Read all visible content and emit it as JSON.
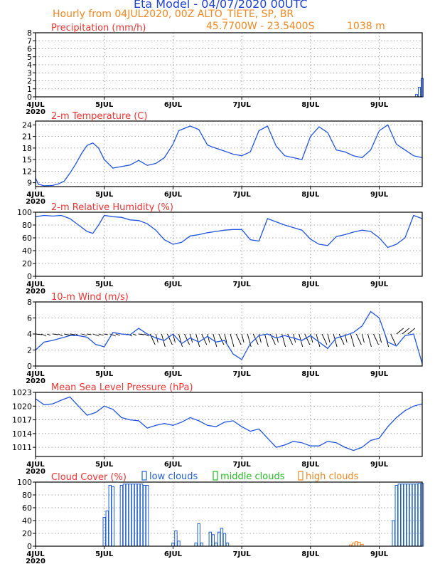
{
  "header": {
    "title": "Eta Model - 04/07/2020 00UTC",
    "subtitle": "Hourly from 04JUL2020, 00Z  ALTO_TIETE, SP, BR",
    "coords": "45.7700W - 23.5400S",
    "elevation": "1038  m"
  },
  "colors": {
    "line": "#2255dd",
    "title": "#ee3333",
    "header_blue": "#2244cc",
    "header_orange": "#ee8822",
    "low": "#1f5fd0",
    "middle": "#22bb22",
    "high": "#ee8822"
  },
  "chart_data": [
    {
      "id": "precip",
      "type": "bar",
      "title": "Precipitation (mm/h)",
      "ylim": [
        0,
        8
      ],
      "yticks": [
        0,
        1,
        2,
        3,
        4,
        5,
        6,
        7,
        8
      ],
      "x_labels": [
        "4JUL",
        "5JUL",
        "6JUL",
        "7JUL",
        "8JUL",
        "9JUL"
      ],
      "x_year": "2020",
      "series": [
        {
          "name": "precipitation",
          "x": [
            133,
            134,
            135
          ],
          "values": [
            0.3,
            1.2,
            2.3
          ]
        }
      ]
    },
    {
      "id": "temp",
      "type": "line",
      "title": "2-m Temperature (C)",
      "ylim": [
        8,
        25
      ],
      "yticks": [
        9,
        12,
        15,
        18,
        21,
        24
      ],
      "x_labels": [
        "4JUL",
        "5JUL",
        "6JUL",
        "7JUL",
        "8JUL",
        "9JUL"
      ],
      "x_year": "2020",
      "series": [
        {
          "name": "temperature",
          "x": [
            0,
            1,
            3,
            6,
            8,
            10,
            12,
            14,
            16,
            18,
            20,
            22,
            24,
            27,
            30,
            33,
            36,
            39,
            42,
            45,
            48,
            50,
            54,
            57,
            60,
            62,
            66,
            69,
            72,
            75,
            78,
            81,
            84,
            87,
            90,
            93,
            96,
            99,
            102,
            105,
            108,
            111,
            114,
            117,
            120,
            123,
            126,
            129,
            132,
            135
          ],
          "values": [
            10.2,
            8.6,
            8.2,
            8.3,
            8.7,
            9.4,
            11.5,
            13.8,
            16.5,
            18.7,
            19.3,
            18.0,
            15.0,
            12.8,
            13.2,
            13.6,
            14.8,
            13.5,
            14.0,
            15.5,
            19.0,
            22.5,
            23.7,
            22.8,
            18.8,
            18.2,
            17.2,
            16.4,
            16.0,
            17.0,
            22.5,
            23.7,
            18.5,
            16.0,
            15.5,
            15.0,
            21.0,
            23.5,
            22.0,
            17.5,
            17.0,
            16.0,
            15.5,
            17.5,
            22.5,
            24.0,
            19.0,
            17.5,
            16.0,
            15.5
          ]
        }
      ]
    },
    {
      "id": "rh",
      "type": "line",
      "title": "2-m Relative Humidity (%)",
      "ylim": [
        0,
        100
      ],
      "yticks": [
        0,
        20,
        40,
        60,
        80,
        100
      ],
      "x_labels": [
        "4JUL",
        "5JUL",
        "6JUL",
        "7JUL",
        "8JUL",
        "9JUL"
      ],
      "x_year": "2020",
      "series": [
        {
          "name": "relative humidity",
          "x": [
            0,
            3,
            6,
            9,
            12,
            15,
            18,
            20,
            22,
            24,
            27,
            30,
            33,
            36,
            39,
            42,
            45,
            48,
            51,
            54,
            57,
            60,
            63,
            66,
            69,
            72,
            75,
            78,
            81,
            84,
            87,
            90,
            93,
            96,
            99,
            102,
            105,
            108,
            111,
            114,
            117,
            120,
            123,
            126,
            129,
            132,
            135
          ],
          "values": [
            93,
            95,
            94,
            95,
            90,
            80,
            70,
            67,
            80,
            95,
            93,
            92,
            88,
            87,
            82,
            72,
            57,
            50,
            53,
            63,
            65,
            68,
            70,
            72,
            73,
            73,
            57,
            55,
            90,
            85,
            80,
            76,
            72,
            58,
            50,
            48,
            62,
            65,
            69,
            72,
            70,
            60,
            45,
            50,
            60,
            95,
            90
          ]
        }
      ]
    },
    {
      "id": "wind",
      "type": "line",
      "title": "10-m Wind (m/s)",
      "ylim": [
        0,
        8
      ],
      "yticks": [
        0,
        2,
        4,
        6,
        8
      ],
      "x_labels": [
        "4JUL",
        "5JUL",
        "6JUL",
        "7JUL",
        "8JUL",
        "9JUL"
      ],
      "x_year": "2020",
      "series": [
        {
          "name": "wind speed",
          "x": [
            0,
            3,
            6,
            9,
            12,
            15,
            18,
            21,
            24,
            27,
            30,
            33,
            36,
            39,
            42,
            45,
            48,
            51,
            54,
            57,
            60,
            63,
            66,
            69,
            72,
            75,
            78,
            81,
            84,
            87,
            90,
            93,
            96,
            99,
            102,
            105,
            108,
            111,
            114,
            117,
            120,
            123,
            126,
            129,
            132,
            135
          ],
          "values": [
            2.0,
            3.0,
            3.2,
            3.5,
            3.8,
            3.8,
            3.6,
            2.7,
            2.4,
            4.2,
            4.0,
            3.9,
            4.7,
            4.0,
            3.5,
            3.2,
            4.0,
            2.8,
            3.5,
            3.0,
            3.7,
            3.0,
            3.2,
            1.5,
            0.8,
            2.8,
            3.8,
            4.0,
            3.5,
            3.8,
            3.5,
            3.2,
            3.8,
            3.0,
            2.2,
            3.5,
            3.8,
            4.2,
            5.0,
            6.8,
            6.0,
            3.0,
            2.5,
            3.8,
            4.0,
            0.3
          ]
        }
      ]
    },
    {
      "id": "mslp",
      "type": "line",
      "title": "Mean Sea Level Pressure (hPa)",
      "ylim": [
        1009,
        1023
      ],
      "yticks": [
        1011,
        1014,
        1017,
        1020,
        1023
      ],
      "x_labels": [
        "4JUL",
        "5JUL",
        "6JUL",
        "7JUL",
        "8JUL",
        "9JUL"
      ],
      "x_year": "2020",
      "series": [
        {
          "name": "pressure",
          "x": [
            0,
            3,
            6,
            9,
            12,
            15,
            18,
            21,
            24,
            27,
            30,
            33,
            36,
            39,
            42,
            45,
            48,
            51,
            54,
            57,
            60,
            63,
            66,
            69,
            72,
            75,
            78,
            81,
            84,
            87,
            90,
            93,
            96,
            99,
            102,
            105,
            108,
            111,
            114,
            117,
            120,
            123,
            126,
            129,
            132,
            135
          ],
          "values": [
            1021.6,
            1020.3,
            1020.5,
            1021.3,
            1022.0,
            1020.0,
            1018.0,
            1018.6,
            1020.0,
            1019.3,
            1017.5,
            1017.0,
            1016.8,
            1015.2,
            1015.8,
            1016.2,
            1015.8,
            1016.5,
            1017.5,
            1016.8,
            1015.8,
            1015.5,
            1016.5,
            1016.8,
            1015.5,
            1014.5,
            1015.0,
            1013.0,
            1011.0,
            1011.5,
            1012.3,
            1012.0,
            1011.3,
            1011.3,
            1012.3,
            1012.0,
            1011.0,
            1010.3,
            1011.0,
            1012.5,
            1013.0,
            1015.5,
            1017.5,
            1019.0,
            1020.0,
            1020.5
          ]
        }
      ]
    },
    {
      "id": "cloud",
      "type": "bar",
      "title": "Cloud Cover (%)",
      "ylim": [
        0,
        100
      ],
      "yticks": [
        0,
        20,
        40,
        60,
        80,
        100
      ],
      "x_labels": [
        "4JUL",
        "5JUL",
        "6JUL",
        "7JUL",
        "8JUL",
        "9JUL"
      ],
      "x_year": "2020",
      "legend": [
        "low clouds",
        "middle clouds",
        "high clouds"
      ],
      "series": [
        {
          "name": "low clouds",
          "x": [
            24,
            25,
            26,
            27,
            30,
            31,
            32,
            33,
            34,
            35,
            36,
            37,
            38,
            39,
            48,
            49,
            50,
            56,
            57,
            58,
            61,
            62,
            63,
            64,
            65,
            66,
            67,
            125,
            126,
            127,
            128,
            129,
            130,
            131,
            132,
            133,
            134,
            135
          ],
          "values": [
            45,
            55,
            95,
            93,
            95,
            97,
            97,
            97,
            97,
            97,
            97,
            97,
            95,
            95,
            5,
            24,
            8,
            5,
            35,
            5,
            22,
            18,
            5,
            22,
            28,
            20,
            5,
            40,
            95,
            97,
            97,
            97,
            97,
            97,
            97,
            97,
            98,
            98
          ]
        },
        {
          "name": "middle clouds",
          "x": [],
          "values": []
        },
        {
          "name": "high clouds",
          "x": [
            110,
            111,
            112,
            113,
            114
          ],
          "values": [
            2,
            5,
            7,
            6,
            3
          ]
        }
      ]
    }
  ]
}
